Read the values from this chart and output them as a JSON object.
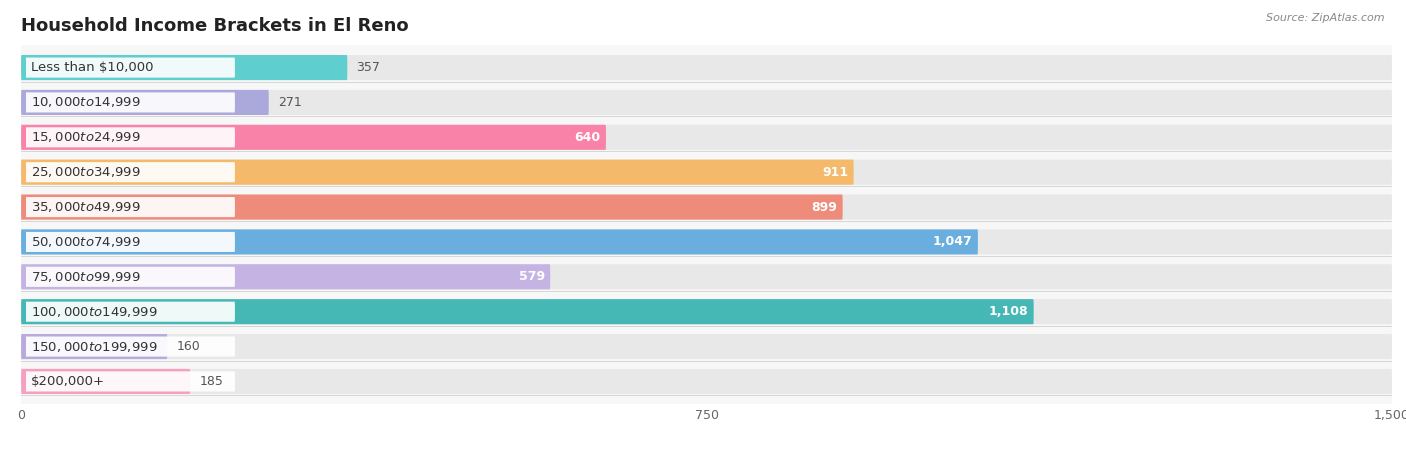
{
  "title": "Household Income Brackets in El Reno",
  "source": "Source: ZipAtlas.com",
  "categories": [
    "Less than $10,000",
    "$10,000 to $14,999",
    "$15,000 to $24,999",
    "$25,000 to $34,999",
    "$35,000 to $49,999",
    "$50,000 to $74,999",
    "$75,000 to $99,999",
    "$100,000 to $149,999",
    "$150,000 to $199,999",
    "$200,000+"
  ],
  "values": [
    357,
    271,
    640,
    911,
    899,
    1047,
    579,
    1108,
    160,
    185
  ],
  "colors": [
    "#5ECECE",
    "#ABA8DC",
    "#F983A8",
    "#F5B96B",
    "#EE8B7B",
    "#6AAEE0",
    "#C4B3E3",
    "#45B8B5",
    "#B8AADD",
    "#F5A0C0"
  ],
  "xlim": [
    0,
    1500
  ],
  "xticks": [
    0,
    750,
    1500
  ],
  "bar_bg_color": "#e8e8e8",
  "label_bg_color": "#ffffff",
  "plot_bg_color": "#f7f7f7",
  "title_fontsize": 13,
  "label_fontsize": 9.5,
  "value_fontsize": 9,
  "bar_height": 0.72
}
